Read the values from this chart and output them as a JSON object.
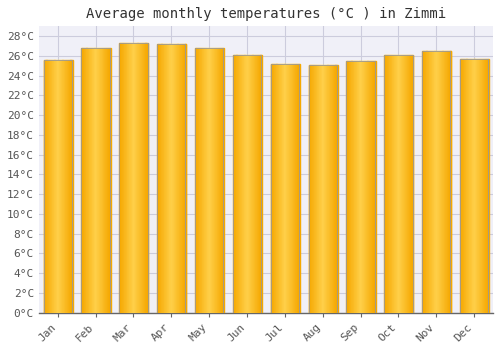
{
  "title": "Average monthly temperatures (°C ) in Zimmi",
  "months": [
    "Jan",
    "Feb",
    "Mar",
    "Apr",
    "May",
    "Jun",
    "Jul",
    "Aug",
    "Sep",
    "Oct",
    "Nov",
    "Dec"
  ],
  "temperatures": [
    25.6,
    26.8,
    27.3,
    27.2,
    26.8,
    26.1,
    25.2,
    25.1,
    25.5,
    26.1,
    26.5,
    25.7
  ],
  "bar_color_center": "#FFD04A",
  "bar_color_edge": "#F5A800",
  "bar_border_color": "#999999",
  "background_color": "#FFFFFF",
  "plot_bg_color": "#F0F0F8",
  "grid_color": "#CCCCDD",
  "ylim": [
    0,
    29
  ],
  "ytick_step": 2,
  "title_fontsize": 10,
  "tick_fontsize": 8,
  "title_font": "monospace",
  "tick_font": "monospace"
}
